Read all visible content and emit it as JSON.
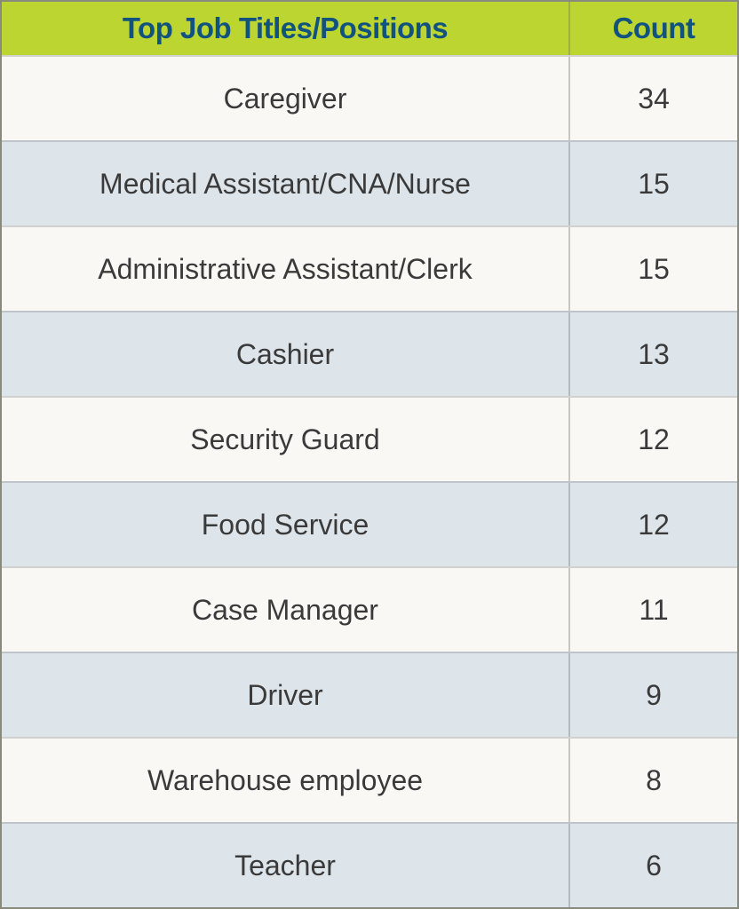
{
  "table": {
    "header": {
      "col1": "Top Job Titles/Positions",
      "col2": "Count"
    },
    "rows": [
      {
        "label": "Caregiver",
        "count": "34"
      },
      {
        "label": "Medical Assistant/CNA/Nurse",
        "count": "15"
      },
      {
        "label": "Administrative Assistant/Clerk",
        "count": "15"
      },
      {
        "label": "Cashier",
        "count": "13"
      },
      {
        "label": "Security Guard",
        "count": "12"
      },
      {
        "label": "Food Service",
        "count": "12"
      },
      {
        "label": "Case Manager",
        "count": "11"
      },
      {
        "label": "Driver",
        "count": "9"
      },
      {
        "label": "Warehouse employee",
        "count": "8"
      },
      {
        "label": "Teacher",
        "count": "6"
      }
    ]
  },
  "colors": {
    "header_bg": "#bcd531",
    "header_text": "#11527e",
    "row_bg_even": "#faf8f5",
    "row_bg_odd": "#dde4ea",
    "row_text": "#3a3a3a"
  },
  "chart_data": {
    "type": "table",
    "title": "Top Job Titles/Positions",
    "columns": [
      "Top Job Titles/Positions",
      "Count"
    ],
    "rows": [
      [
        "Caregiver",
        34
      ],
      [
        "Medical Assistant/CNA/Nurse",
        15
      ],
      [
        "Administrative Assistant/Clerk",
        15
      ],
      [
        "Cashier",
        13
      ],
      [
        "Security Guard",
        12
      ],
      [
        "Food Service",
        12
      ],
      [
        "Case Manager",
        11
      ],
      [
        "Driver",
        9
      ],
      [
        "Warehouse employee",
        8
      ],
      [
        "Teacher",
        6
      ]
    ]
  }
}
